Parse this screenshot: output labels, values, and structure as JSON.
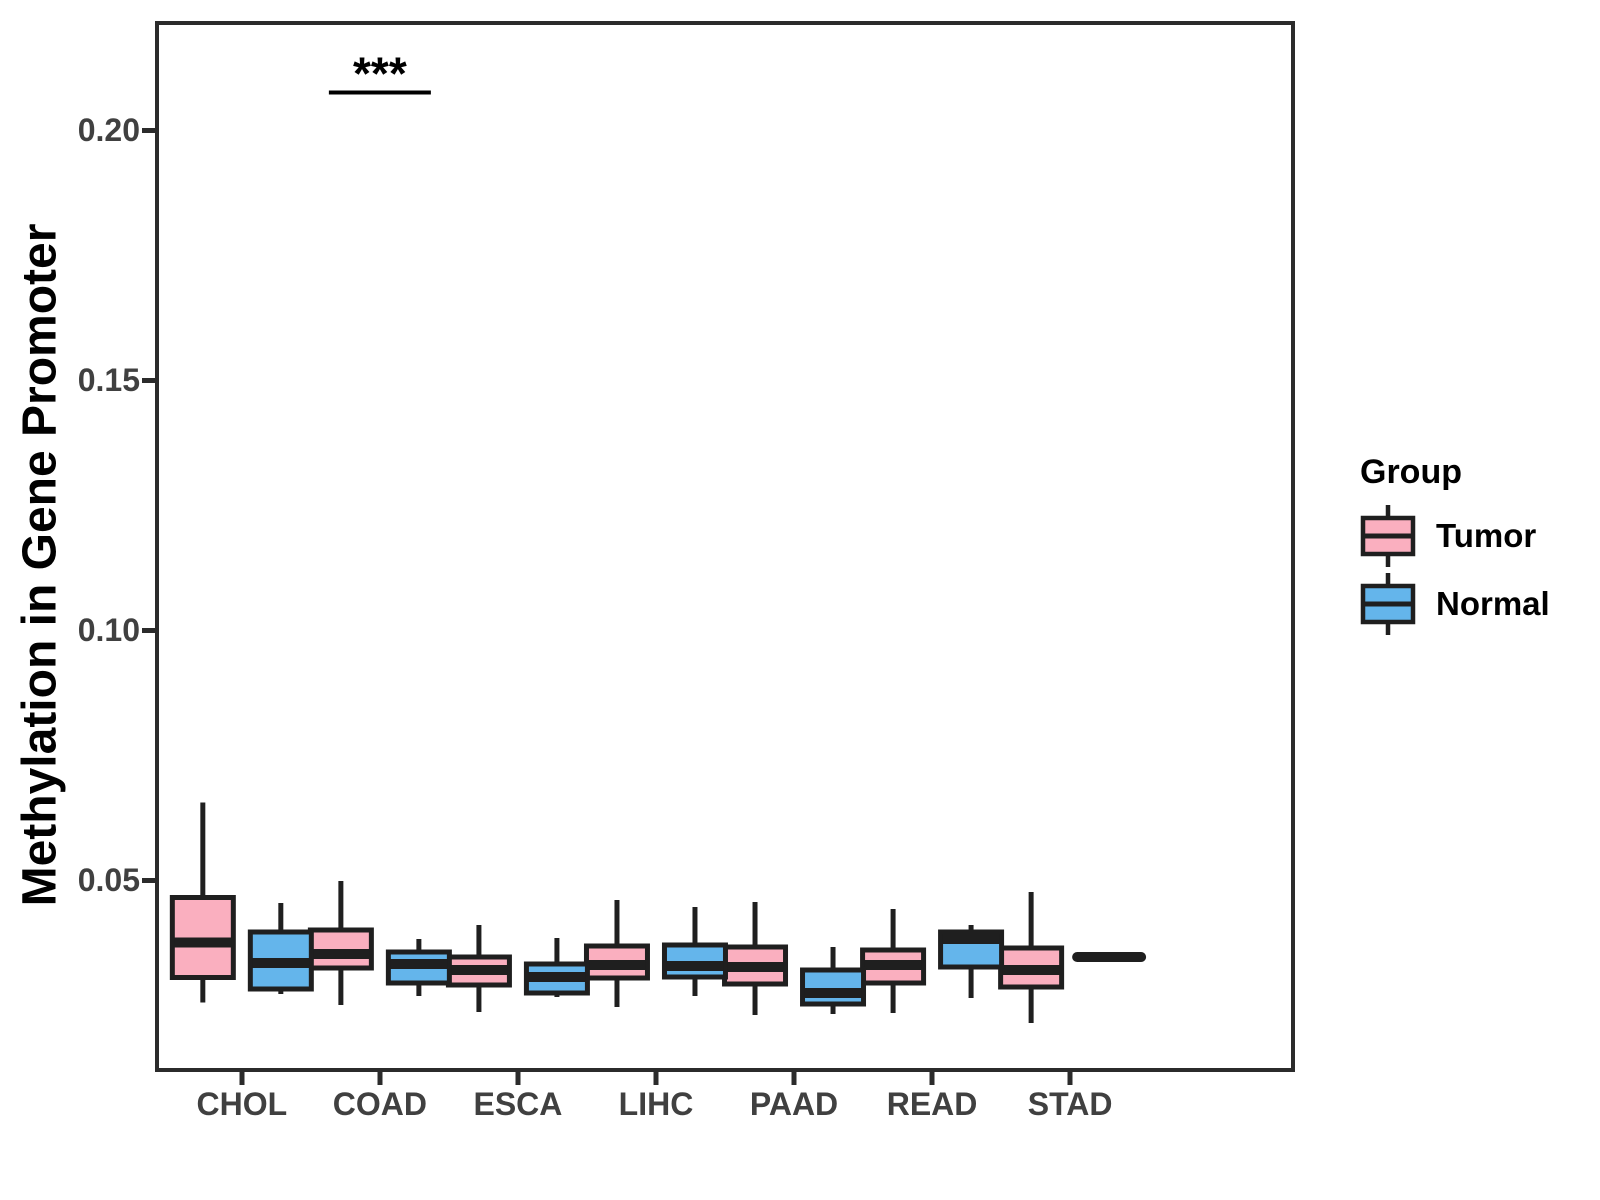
{
  "chart_data": {
    "type": "boxplot",
    "title": "",
    "ylabel": "Methylation in Gene Promoter",
    "xlabel": "",
    "categories": [
      "CHOL",
      "COAD",
      "ESCA",
      "LIHC",
      "PAAD",
      "READ",
      "STAD"
    ],
    "yticks": [
      0.05,
      0.1,
      0.15,
      0.2
    ],
    "ytick_labels": [
      "0.05",
      "0.10",
      "0.15",
      "0.20"
    ],
    "ylim": [
      0.0124,
      0.221
    ],
    "grid": false,
    "legend": {
      "title": "Group",
      "position": "right"
    },
    "series": [
      {
        "name": "Tumor",
        "fill": "#FAAFBF",
        "boxes": [
          {
            "lo": 0.0255,
            "q1": 0.0305,
            "med": 0.0375,
            "q3": 0.0465,
            "hi": 0.0655
          },
          {
            "lo": 0.025,
            "q1": 0.0324,
            "med": 0.0352,
            "q3": 0.04,
            "hi": 0.0498
          },
          {
            "lo": 0.0236,
            "q1": 0.029,
            "med": 0.032,
            "q3": 0.0346,
            "hi": 0.041
          },
          {
            "lo": 0.0246,
            "q1": 0.0304,
            "med": 0.033,
            "q3": 0.0368,
            "hi": 0.046
          },
          {
            "lo": 0.023,
            "q1": 0.0292,
            "med": 0.0326,
            "q3": 0.0366,
            "hi": 0.0456
          },
          {
            "lo": 0.0234,
            "q1": 0.0294,
            "med": 0.033,
            "q3": 0.036,
            "hi": 0.0442
          },
          {
            "lo": 0.0214,
            "q1": 0.0286,
            "med": 0.032,
            "q3": 0.0364,
            "hi": 0.0476
          }
        ]
      },
      {
        "name": "Normal",
        "fill": "#64B5EB",
        "boxes": [
          {
            "lo": 0.0272,
            "q1": 0.0282,
            "med": 0.0334,
            "q3": 0.0396,
            "hi": 0.0454
          },
          {
            "lo": 0.0268,
            "q1": 0.0294,
            "med": 0.0332,
            "q3": 0.0356,
            "hi": 0.0382
          },
          {
            "lo": 0.0266,
            "q1": 0.0274,
            "med": 0.0306,
            "q3": 0.0332,
            "hi": 0.0384
          },
          {
            "lo": 0.0268,
            "q1": 0.0306,
            "med": 0.0328,
            "q3": 0.037,
            "hi": 0.0446
          },
          {
            "lo": 0.0232,
            "q1": 0.0252,
            "med": 0.0274,
            "q3": 0.032,
            "hi": 0.0366
          },
          {
            "lo": 0.0264,
            "q1": 0.0326,
            "med": 0.0382,
            "q3": 0.0396,
            "hi": 0.041
          },
          {
            "lo": 0.0346,
            "q1": 0.0346,
            "med": 0.0346,
            "q3": 0.0346,
            "hi": 0.0346
          }
        ]
      }
    ],
    "annotation": {
      "label": "***",
      "category": "COAD",
      "bar_y": 0.2075,
      "spans": [
        "Tumor",
        "Normal"
      ]
    }
  },
  "theme": {
    "background": "#FFFFFF",
    "box_stroke": "#1F1F1F",
    "panel_border": "#2B2B2B",
    "axis_text_color": "#404040",
    "axis_title_color": "#000000",
    "legend_text_color": "#000000",
    "annotation_color": "#000000"
  }
}
